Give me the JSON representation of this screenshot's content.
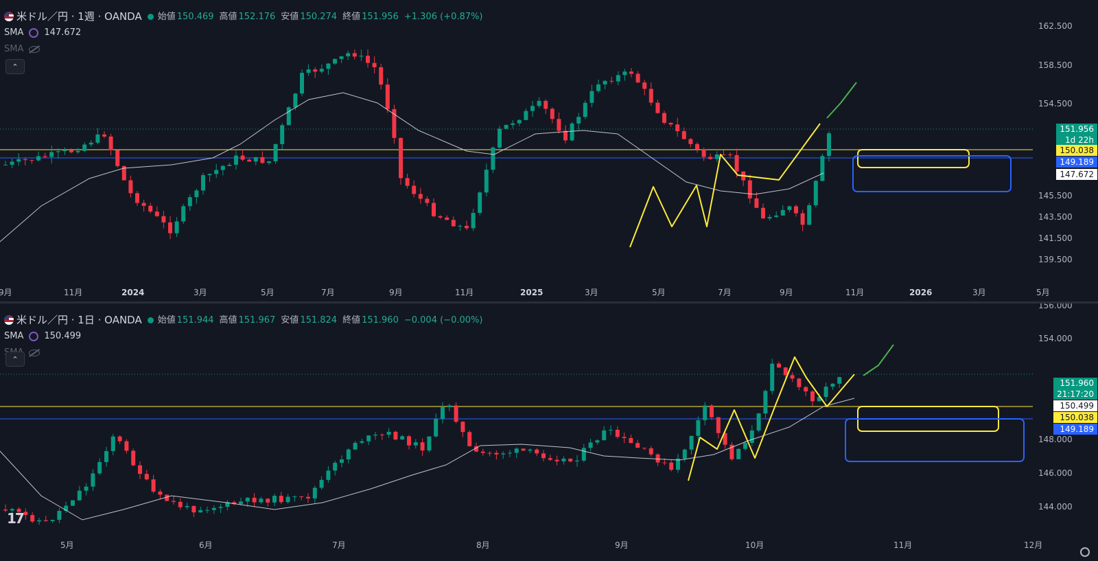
{
  "top": {
    "symbol_title": "米ドル／円 · 1週 · OANDA",
    "ohlc": [
      {
        "k": "始値",
        "v": "150.469"
      },
      {
        "k": "高値",
        "v": "152.176"
      },
      {
        "k": "安値",
        "v": "150.274"
      },
      {
        "k": "終値",
        "v": "151.956"
      },
      {
        "k": "",
        "v": "+1.306 (+0.87%)"
      }
    ],
    "sma_label": "SMA",
    "sma_value": "147.672",
    "sma2_label": "SMA",
    "collapse_label": "⌃",
    "price_axis": [
      "162.500",
      "158.500",
      "154.500",
      "145.500",
      "143.500",
      "141.500",
      "139.500"
    ],
    "time_axis": [
      "9月",
      "11月",
      "2024",
      "3月",
      "5月",
      "7月",
      "9月",
      "11月",
      "2025",
      "3月",
      "5月",
      "7月",
      "9月",
      "11月",
      "2026",
      "3月",
      "5月"
    ],
    "tags": {
      "last_price": "151.956",
      "countdown": "1d 22h",
      "yellow_line": "150.038",
      "blue_line": "149.189",
      "sma": "147.672"
    }
  },
  "bottom": {
    "symbol_title": "米ドル／円 · 1日 · OANDA",
    "ohlc": [
      {
        "k": "始値",
        "v": "151.944"
      },
      {
        "k": "高値",
        "v": "151.967"
      },
      {
        "k": "安値",
        "v": "151.824"
      },
      {
        "k": "終値",
        "v": "151.960"
      },
      {
        "k": "",
        "v": "−0.004 (−0.00%)"
      }
    ],
    "sma_label": "SMA",
    "sma_value": "150.499",
    "sma2_label": "SMA",
    "collapse_label": "⌃",
    "price_axis": [
      "156.000",
      "154.000",
      "148.000",
      "146.000",
      "144.000"
    ],
    "time_axis": [
      "5月",
      "6月",
      "7月",
      "8月",
      "9月",
      "10月",
      "11月",
      "12月"
    ],
    "tags": {
      "last_price": "151.960",
      "countdown": "21:17:20",
      "sma": "150.499",
      "yellow_line": "150.038",
      "blue_line": "149.189"
    }
  },
  "logo_text": "17",
  "colors": {
    "background": "#131722",
    "up": "#089981",
    "down": "#f23645",
    "sma": "#e0e3eb",
    "yellow": "#ffeb3b",
    "blue": "#2962ff",
    "green_draw": "#4caf50"
  }
}
